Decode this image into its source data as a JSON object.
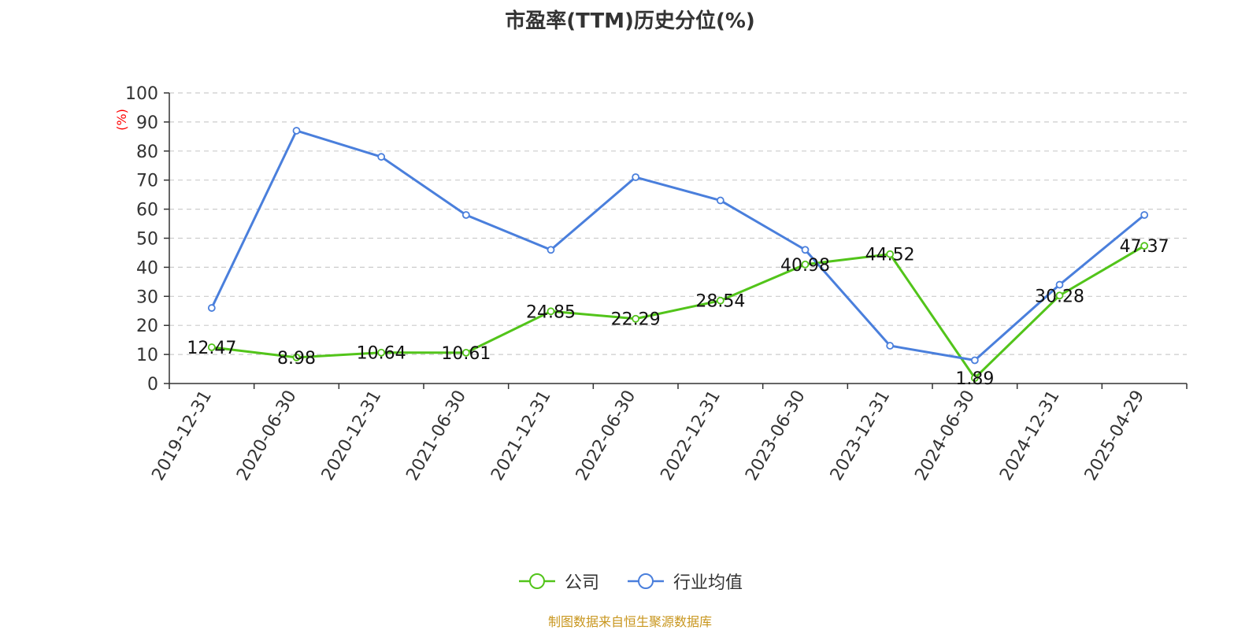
{
  "chart_data": {
    "type": "line",
    "title": "市盈率(TTM)历史分位(%)",
    "ylabel": "(%)",
    "xlabel": "",
    "ylim": [
      0,
      100
    ],
    "yticks": [
      0,
      10,
      20,
      30,
      40,
      50,
      60,
      70,
      80,
      90,
      100
    ],
    "grid": true,
    "legend_position": "bottom",
    "categories": [
      "2019-12-31",
      "2020-06-30",
      "2020-12-31",
      "2021-06-30",
      "2021-12-31",
      "2022-06-30",
      "2022-12-31",
      "2023-06-30",
      "2023-12-31",
      "2024-06-30",
      "2024-12-31",
      "2025-04-29"
    ],
    "series": [
      {
        "name": "公司",
        "color": "#52c41a",
        "values": [
          12.47,
          8.98,
          10.64,
          10.61,
          24.85,
          22.29,
          28.54,
          40.98,
          44.52,
          1.89,
          30.28,
          47.37
        ],
        "labels": [
          "12.47",
          "8.98",
          "10.64",
          "10.61",
          "24.85",
          "22.29",
          "28.54",
          "40.98",
          "44.52",
          "1.89",
          "30.28",
          "47.37"
        ]
      },
      {
        "name": "行业均值",
        "color": "#4a7fdc",
        "values": [
          26,
          87,
          78,
          58,
          46,
          71,
          63,
          46,
          13,
          8,
          34,
          58
        ]
      }
    ]
  },
  "source_note": "制图数据来自恒生聚源数据库",
  "colors": {
    "title": "#333333",
    "axis": "#333333",
    "grid": "#cccccc",
    "ylabel": "#ff0000",
    "source_note": "#c8961e"
  }
}
